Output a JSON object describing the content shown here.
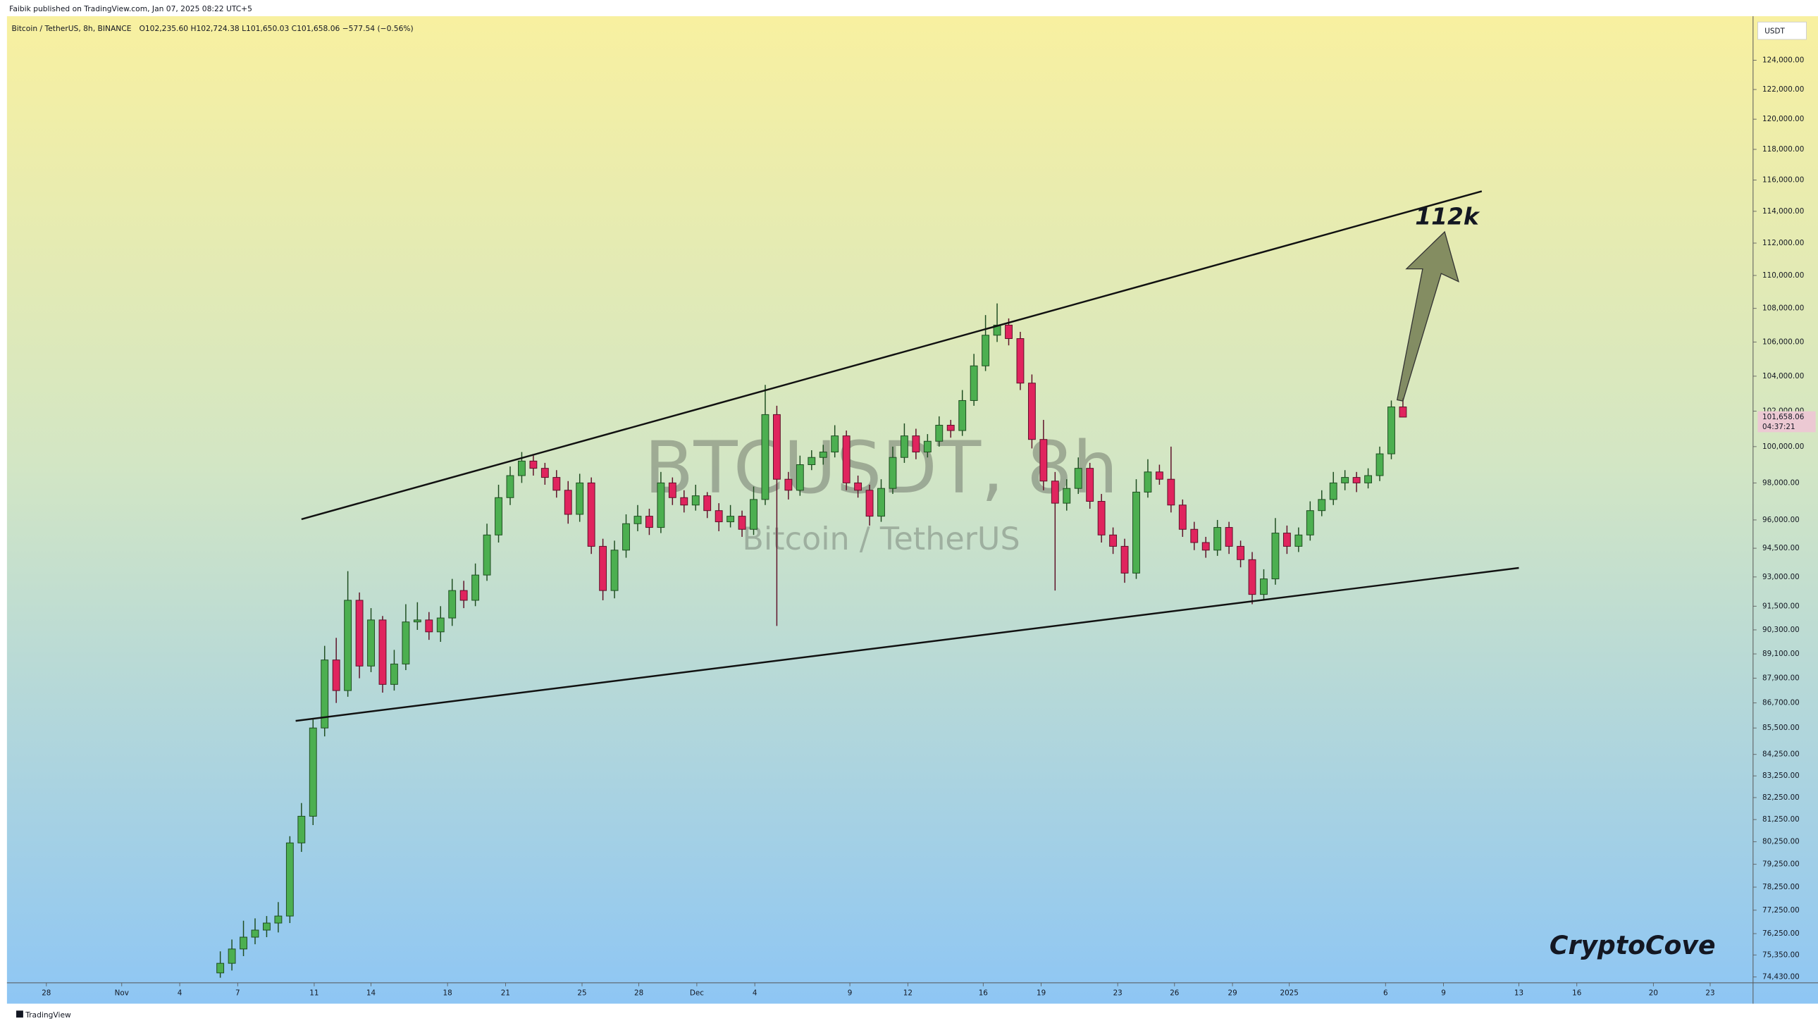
{
  "header": {
    "published": "Faibik published on TradingView.com, Jan 07, 2025 08:22 UTC+5"
  },
  "chart_data": {
    "type": "candlestick",
    "symbol": "Bitcoin / TetherUS, 8h, BINANCE",
    "legend": "O102,235.60 H102,724.38 L101,650.03 C101,658.06 −577.54 (−0.56%)",
    "watermark": "BTCUSDT, 8h",
    "watermark_subtitle": "Bitcoin / TetherUS",
    "currency": "USDT",
    "annotations": [
      "112k",
      "CryptoCove"
    ],
    "countdown": "04:37:21",
    "current_price": {
      "value": 101658.06,
      "label": "101,658.06"
    },
    "up_color": "#4caf50",
    "up_border": "#1e4d20",
    "down_color": "#e0245e",
    "down_border": "#5e1028",
    "log_scale": true,
    "open": [
      74600,
      75000,
      75600,
      76100,
      76400,
      76700,
      77000,
      80200,
      81400,
      85500,
      88800,
      87300,
      91800,
      88500,
      90800,
      87600,
      88600,
      90700,
      90800,
      90200,
      90900,
      92300,
      91800,
      93100,
      95200,
      97200,
      98400,
      99200,
      98800,
      98300,
      97600,
      96300,
      98000,
      94600,
      92300,
      94400,
      95800,
      96200,
      95600,
      98000,
      97200,
      96800,
      97300,
      96500,
      95900,
      96200,
      95500,
      97100,
      101800,
      98200,
      97600,
      99000,
      99400,
      99700,
      100600,
      98000,
      97600,
      96200,
      97700,
      99400,
      100600,
      99700,
      100300,
      101200,
      100900,
      102600,
      104600,
      106400,
      107000,
      106200,
      103600,
      100400,
      98100,
      96900,
      97700,
      98800,
      97000,
      95200,
      94600,
      93200,
      97500,
      98600,
      98200,
      96800,
      95500,
      94800,
      94400,
      95600,
      94600,
      93900,
      92100,
      92900,
      95300,
      94600,
      95200,
      96500,
      97100,
      98000,
      98300,
      98000,
      98400,
      99600,
      102235.6
    ],
    "high": [
      75500,
      76000,
      76800,
      76900,
      77000,
      77600,
      80500,
      82000,
      85900,
      89500,
      89900,
      93300,
      92200,
      91400,
      91000,
      89300,
      91600,
      91700,
      91200,
      91500,
      92900,
      92800,
      93700,
      95800,
      97900,
      98900,
      99700,
      99500,
      99100,
      98700,
      98100,
      98500,
      98300,
      95000,
      94900,
      96300,
      96800,
      96600,
      98600,
      98300,
      97600,
      97900,
      97500,
      96900,
      96800,
      96500,
      97800,
      103500,
      102300,
      98600,
      99500,
      99800,
      100100,
      101200,
      100900,
      98400,
      97900,
      98200,
      100000,
      101300,
      101000,
      100700,
      101700,
      101500,
      103200,
      105300,
      107600,
      108300,
      107400,
      106600,
      104100,
      101500,
      98600,
      98200,
      99400,
      99100,
      97400,
      95600,
      95000,
      98200,
      99300,
      99000,
      100000,
      97100,
      95900,
      95100,
      96000,
      95900,
      94900,
      94300,
      93400,
      96100,
      95700,
      95600,
      97000,
      97600,
      98600,
      98700,
      98600,
      98800,
      100000,
      102600,
      102724.38
    ],
    "low": [
      74400,
      74700,
      75300,
      75800,
      76100,
      76300,
      76700,
      79800,
      81000,
      85100,
      86700,
      87000,
      87900,
      88200,
      87200,
      87300,
      88300,
      90300,
      89800,
      89700,
      90500,
      91400,
      91500,
      92800,
      94800,
      96800,
      98000,
      98400,
      97900,
      97200,
      95800,
      95900,
      94200,
      91800,
      91900,
      94000,
      95400,
      95200,
      95300,
      96800,
      96400,
      96500,
      96100,
      95400,
      95600,
      95100,
      95200,
      96800,
      90500,
      97100,
      97300,
      98700,
      99000,
      99400,
      97600,
      97200,
      95700,
      95900,
      97400,
      99100,
      99300,
      99400,
      100000,
      100500,
      100600,
      102300,
      104300,
      106000,
      105800,
      103200,
      99900,
      97600,
      92300,
      96500,
      97400,
      96600,
      94800,
      94200,
      92700,
      92900,
      97200,
      97900,
      96400,
      95100,
      94400,
      94000,
      94100,
      94200,
      93500,
      91600,
      91800,
      92600,
      94200,
      94300,
      94900,
      96200,
      96800,
      97600,
      97500,
      97700,
      98100,
      99300,
      101650.03
    ],
    "close": [
      75000,
      75600,
      76100,
      76400,
      76700,
      77000,
      80200,
      81400,
      85500,
      88800,
      87300,
      91800,
      88500,
      90800,
      87600,
      88600,
      90700,
      90800,
      90200,
      90900,
      92300,
      91800,
      93100,
      95200,
      97200,
      98400,
      99200,
      98800,
      98300,
      97600,
      96300,
      98000,
      94600,
      92300,
      94400,
      95800,
      96200,
      95600,
      98000,
      97200,
      96800,
      97300,
      96500,
      95900,
      96200,
      95500,
      97100,
      101800,
      98200,
      97600,
      99000,
      99400,
      99700,
      100600,
      98000,
      97600,
      96200,
      97700,
      99400,
      100600,
      99700,
      100300,
      101200,
      100900,
      102600,
      104600,
      106400,
      107000,
      106200,
      103600,
      100400,
      98100,
      96900,
      97700,
      98800,
      97000,
      95200,
      94600,
      93200,
      97500,
      98600,
      98200,
      96800,
      95500,
      94800,
      94400,
      95600,
      94600,
      93900,
      92100,
      92900,
      95300,
      94600,
      95200,
      96500,
      97100,
      98000,
      98300,
      98000,
      98400,
      99600,
      102235.6,
      101658.06
    ],
    "xlim": [
      -18.4,
      132.2
    ],
    "xticks": [
      {
        "value": -15,
        "label": "28"
      },
      {
        "value": -8.5,
        "label": "Nov"
      },
      {
        "value": -3.5,
        "label": "4"
      },
      {
        "value": 1.5,
        "label": "7"
      },
      {
        "value": 8.1,
        "label": "11"
      },
      {
        "value": 13,
        "label": "14"
      },
      {
        "value": 19.6,
        "label": "18"
      },
      {
        "value": 24.6,
        "label": "21"
      },
      {
        "value": 31.2,
        "label": "25"
      },
      {
        "value": 36.1,
        "label": "28"
      },
      {
        "value": 41.1,
        "label": "Dec"
      },
      {
        "value": 46.1,
        "label": "4"
      },
      {
        "value": 54.3,
        "label": "9"
      },
      {
        "value": 59.3,
        "label": "12"
      },
      {
        "value": 65.8,
        "label": "16"
      },
      {
        "value": 70.8,
        "label": "19"
      },
      {
        "value": 77.4,
        "label": "23"
      },
      {
        "value": 82.3,
        "label": "26"
      },
      {
        "value": 87.3,
        "label": "29"
      },
      {
        "value": 92.2,
        "label": "2025"
      },
      {
        "value": 100.5,
        "label": "6"
      },
      {
        "value": 105.5,
        "label": "9"
      },
      {
        "value": 112,
        "label": "13"
      },
      {
        "value": 117,
        "label": "16"
      },
      {
        "value": 123.6,
        "label": "20"
      },
      {
        "value": 128.5,
        "label": "23"
      }
    ],
    "ylim": [
      74190,
      127080
    ],
    "yticks": [
      {
        "value": 74430,
        "label": "74,430.00"
      },
      {
        "value": 75350,
        "label": "75,350.00"
      },
      {
        "value": 76250,
        "label": "76,250.00"
      },
      {
        "value": 77250,
        "label": "77,250.00"
      },
      {
        "value": 78250,
        "label": "78,250.00"
      },
      {
        "value": 79250,
        "label": "79,250.00"
      },
      {
        "value": 80250,
        "label": "80,250.00"
      },
      {
        "value": 81250,
        "label": "81,250.00"
      },
      {
        "value": 82250,
        "label": "82,250.00"
      },
      {
        "value": 83250,
        "label": "83,250.00"
      },
      {
        "value": 84250,
        "label": "84,250.00"
      },
      {
        "value": 85500,
        "label": "85,500.00"
      },
      {
        "value": 86700,
        "label": "86,700.00"
      },
      {
        "value": 87900,
        "label": "87,900.00"
      },
      {
        "value": 89100,
        "label": "89,100.00"
      },
      {
        "value": 90300,
        "label": "90,300.00"
      },
      {
        "value": 91500,
        "label": "91,500.00"
      },
      {
        "value": 93000,
        "label": "93,000.00"
      },
      {
        "value": 94500,
        "label": "94,500.00"
      },
      {
        "value": 96000,
        "label": "96,000.00"
      },
      {
        "value": 98000,
        "label": "98,000.00"
      },
      {
        "value": 100000,
        "label": "100,000.00"
      },
      {
        "value": 102000,
        "label": "102,000.00"
      },
      {
        "value": 104000,
        "label": "104,000.00"
      },
      {
        "value": 106000,
        "label": "106,000.00"
      },
      {
        "value": 108000,
        "label": "108,000.00"
      },
      {
        "value": 110000,
        "label": "110,000.00"
      },
      {
        "value": 112000,
        "label": "112,000.00"
      },
      {
        "value": 114000,
        "label": "114,000.00"
      },
      {
        "value": 116000,
        "label": "116,000.00"
      },
      {
        "value": 118000,
        "label": "118,000.00"
      },
      {
        "value": 120000,
        "label": "120,000.00"
      },
      {
        "value": 122000,
        "label": "122,000.00"
      },
      {
        "value": 124000,
        "label": "124,000.00"
      }
    ]
  },
  "footer": {
    "brand": "TradingView"
  }
}
